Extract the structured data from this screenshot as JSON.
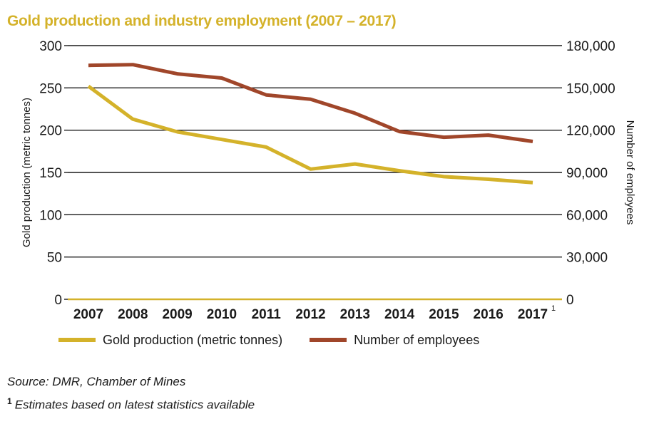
{
  "title": "Gold production and industry employment (2007 – 2017)",
  "colors": {
    "gold": "#d4b22a",
    "employees": "#a0462a",
    "grid": "#1a1a1a"
  },
  "chart_data": {
    "type": "line",
    "title": "Gold production and industry employment (2007 – 2017)",
    "x": [
      "2007",
      "2008",
      "2009",
      "2010",
      "2011",
      "2012",
      "2013",
      "2014",
      "2015",
      "2016",
      "2017"
    ],
    "x_footnote_mark": "1",
    "grid": true,
    "legend_position": "bottom",
    "y_left": {
      "label": "Gold production (metric tonnes)",
      "lim": [
        0,
        300
      ],
      "ticks": [
        "0",
        "50",
        "100",
        "150",
        "200",
        "250",
        "300"
      ]
    },
    "y_right": {
      "label": "Number of employees",
      "lim": [
        0,
        180000
      ],
      "ticks": [
        "0",
        "30,000",
        "60,000",
        "90,000",
        "120,000",
        "150,000",
        "180,000"
      ]
    },
    "series": [
      {
        "name": "Gold production (metric tonnes)",
        "axis": "left",
        "color": "#d4b22a",
        "values": [
          252,
          213,
          198,
          189,
          180,
          154,
          160,
          152,
          145,
          142,
          138
        ]
      },
      {
        "name": "Number of employees",
        "axis": "right",
        "color": "#a0462a",
        "values": [
          166000,
          166500,
          160000,
          157000,
          145000,
          142000,
          132000,
          119000,
          115000,
          116500,
          112000
        ]
      }
    ]
  },
  "source": "Source: DMR, Chamber of Mines",
  "footnote": {
    "mark": "1",
    "text": "Estimates based on latest statistics available"
  }
}
